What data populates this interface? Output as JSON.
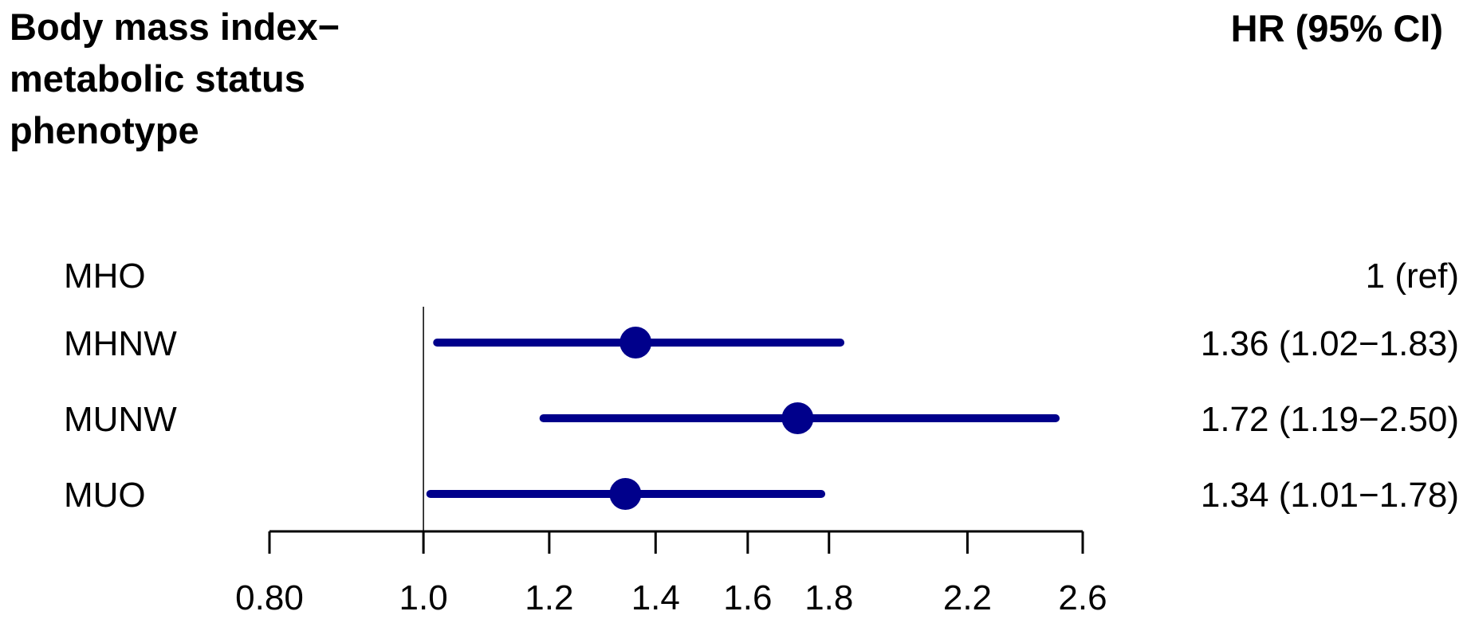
{
  "chart_data": {
    "type": "forest",
    "title_lines": [
      "Body mass index−",
      "metabolic status",
      "phenotype"
    ],
    "value_column_header": "HR (95% CI)",
    "x_scale": "log",
    "reference_line": 1.0,
    "xlim": [
      0.8,
      2.6
    ],
    "xticks": [
      0.8,
      1.0,
      1.2,
      1.4,
      1.6,
      1.8,
      2.2,
      2.6
    ],
    "xtick_labels": [
      "0.80",
      "1.0",
      "1.2",
      "1.4",
      "1.6",
      "1.8",
      "2.2",
      "2.6"
    ],
    "rows": [
      {
        "label": "MHO",
        "hr": 1.0,
        "lower": null,
        "upper": null,
        "text": "1 (ref)"
      },
      {
        "label": "MHNW",
        "hr": 1.36,
        "lower": 1.02,
        "upper": 1.83,
        "text": "1.36 (1.02−1.83)"
      },
      {
        "label": "MUNW",
        "hr": 1.72,
        "lower": 1.19,
        "upper": 2.5,
        "text": "1.72 (1.19−2.50)"
      },
      {
        "label": "MUO",
        "hr": 1.34,
        "lower": 1.01,
        "upper": 1.78,
        "text": "1.34 (1.01−1.78)"
      }
    ],
    "marker_color": "#00008b",
    "grid": false
  }
}
